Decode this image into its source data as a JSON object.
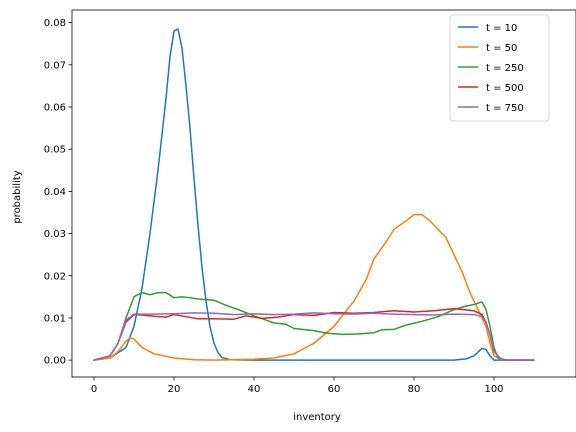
{
  "chart_data": {
    "type": "line",
    "title": "",
    "xlabel": "inventory",
    "ylabel": "probability",
    "xlim": [
      -5.5,
      115.5
    ],
    "ylim": [
      -0.004,
      0.083
    ],
    "xticks": [
      0,
      20,
      40,
      60,
      80,
      100
    ],
    "xtick_labels": [
      "0",
      "20",
      "40",
      "60",
      "80",
      "100"
    ],
    "yticks": [
      0.0,
      0.01,
      0.02,
      0.03,
      0.04,
      0.05,
      0.06,
      0.07,
      0.08
    ],
    "ytick_labels": [
      "0.00",
      "0.01",
      "0.02",
      "0.03",
      "0.04",
      "0.05",
      "0.06",
      "0.07",
      "0.08"
    ],
    "grid": false,
    "legend_position": "top-right",
    "series": [
      {
        "name": "t = 10",
        "color": "#1f77b4",
        "points": [
          [
            0,
            0.0
          ],
          [
            4,
            0.0005
          ],
          [
            8,
            0.003
          ],
          [
            10,
            0.008
          ],
          [
            12,
            0.017
          ],
          [
            14,
            0.03
          ],
          [
            16,
            0.045
          ],
          [
            18,
            0.062
          ],
          [
            19,
            0.072
          ],
          [
            20,
            0.078
          ],
          [
            21,
            0.0785
          ],
          [
            22,
            0.074
          ],
          [
            23,
            0.065
          ],
          [
            24,
            0.055
          ],
          [
            25,
            0.043
          ],
          [
            26,
            0.032
          ],
          [
            27,
            0.022
          ],
          [
            28,
            0.014
          ],
          [
            29,
            0.008
          ],
          [
            30,
            0.004
          ],
          [
            31,
            0.0018
          ],
          [
            32,
            0.0006
          ],
          [
            34,
            0.0001
          ],
          [
            40,
            0.0
          ],
          [
            60,
            0.0
          ],
          [
            80,
            0.0
          ],
          [
            90,
            0.0
          ],
          [
            93,
            0.0003
          ],
          [
            95,
            0.001
          ],
          [
            97,
            0.0028
          ],
          [
            98,
            0.0025
          ],
          [
            99,
            0.001
          ],
          [
            100,
            0.0
          ],
          [
            110,
            0.0
          ]
        ]
      },
      {
        "name": "t = 50",
        "color": "#ff7f0e",
        "points": [
          [
            0,
            0.0
          ],
          [
            4,
            0.0005
          ],
          [
            6,
            0.002
          ],
          [
            8,
            0.0045
          ],
          [
            9,
            0.0053
          ],
          [
            10,
            0.005
          ],
          [
            12,
            0.003
          ],
          [
            15,
            0.0015
          ],
          [
            20,
            0.0005
          ],
          [
            25,
            0.0001
          ],
          [
            30,
            0.0
          ],
          [
            40,
            0.0002
          ],
          [
            45,
            0.0005
          ],
          [
            50,
            0.0015
          ],
          [
            55,
            0.004
          ],
          [
            60,
            0.008
          ],
          [
            65,
            0.014
          ],
          [
            68,
            0.019
          ],
          [
            70,
            0.024
          ],
          [
            73,
            0.028
          ],
          [
            75,
            0.031
          ],
          [
            78,
            0.033
          ],
          [
            80,
            0.0345
          ],
          [
            82,
            0.0345
          ],
          [
            84,
            0.033
          ],
          [
            86,
            0.031
          ],
          [
            88,
            0.029
          ],
          [
            90,
            0.025
          ],
          [
            92,
            0.021
          ],
          [
            94,
            0.016
          ],
          [
            96,
            0.012
          ],
          [
            98,
            0.008
          ],
          [
            99,
            0.004
          ],
          [
            100,
            0.001
          ],
          [
            102,
            0.0
          ],
          [
            110,
            0.0
          ]
        ]
      },
      {
        "name": "t = 250",
        "color": "#2ca02c",
        "points": [
          [
            0,
            0.0
          ],
          [
            4,
            0.001
          ],
          [
            6,
            0.004
          ],
          [
            8,
            0.01
          ],
          [
            10,
            0.015
          ],
          [
            12,
            0.016
          ],
          [
            14,
            0.0155
          ],
          [
            16,
            0.016
          ],
          [
            18,
            0.016
          ],
          [
            20,
            0.0148
          ],
          [
            22,
            0.015
          ],
          [
            24,
            0.0148
          ],
          [
            26,
            0.0145
          ],
          [
            30,
            0.0142
          ],
          [
            33,
            0.013
          ],
          [
            36,
            0.012
          ],
          [
            40,
            0.0105
          ],
          [
            43,
            0.0095
          ],
          [
            45,
            0.0088
          ],
          [
            48,
            0.0085
          ],
          [
            50,
            0.0075
          ],
          [
            55,
            0.007
          ],
          [
            58,
            0.0064
          ],
          [
            62,
            0.0061
          ],
          [
            66,
            0.0062
          ],
          [
            70,
            0.0065
          ],
          [
            72,
            0.0072
          ],
          [
            75,
            0.0073
          ],
          [
            78,
            0.0083
          ],
          [
            82,
            0.0092
          ],
          [
            86,
            0.0103
          ],
          [
            90,
            0.012
          ],
          [
            93,
            0.0128
          ],
          [
            95,
            0.0132
          ],
          [
            97,
            0.0138
          ],
          [
            98,
            0.012
          ],
          [
            99,
            0.008
          ],
          [
            100,
            0.003
          ],
          [
            101,
            0.0005
          ],
          [
            103,
            0.0
          ],
          [
            110,
            0.0
          ]
        ]
      },
      {
        "name": "t = 500",
        "color": "#d62728",
        "points": [
          [
            0,
            0.0
          ],
          [
            4,
            0.001
          ],
          [
            6,
            0.004
          ],
          [
            8,
            0.009
          ],
          [
            10,
            0.0108
          ],
          [
            12,
            0.0107
          ],
          [
            15,
            0.0104
          ],
          [
            18,
            0.0102
          ],
          [
            20,
            0.0108
          ],
          [
            23,
            0.0103
          ],
          [
            26,
            0.0098
          ],
          [
            30,
            0.0098
          ],
          [
            35,
            0.0097
          ],
          [
            38,
            0.0105
          ],
          [
            42,
            0.0099
          ],
          [
            46,
            0.0102
          ],
          [
            50,
            0.0108
          ],
          [
            55,
            0.0106
          ],
          [
            60,
            0.0113
          ],
          [
            65,
            0.0111
          ],
          [
            70,
            0.0113
          ],
          [
            75,
            0.0117
          ],
          [
            80,
            0.0114
          ],
          [
            85,
            0.0117
          ],
          [
            90,
            0.0122
          ],
          [
            95,
            0.0117
          ],
          [
            97,
            0.0108
          ],
          [
            98,
            0.009
          ],
          [
            99,
            0.006
          ],
          [
            100,
            0.002
          ],
          [
            102,
            0.0
          ],
          [
            110,
            0.0
          ]
        ]
      },
      {
        "name": "t = 750",
        "color": "#9467bd",
        "points": [
          [
            0,
            0.0
          ],
          [
            4,
            0.001
          ],
          [
            6,
            0.004
          ],
          [
            8,
            0.0095
          ],
          [
            10,
            0.0109
          ],
          [
            15,
            0.0109
          ],
          [
            20,
            0.011
          ],
          [
            25,
            0.0112
          ],
          [
            30,
            0.0111
          ],
          [
            35,
            0.0108
          ],
          [
            40,
            0.011
          ],
          [
            45,
            0.0108
          ],
          [
            50,
            0.0109
          ],
          [
            55,
            0.0112
          ],
          [
            60,
            0.011
          ],
          [
            65,
            0.0109
          ],
          [
            70,
            0.0111
          ],
          [
            75,
            0.0109
          ],
          [
            80,
            0.0108
          ],
          [
            85,
            0.0107
          ],
          [
            90,
            0.0109
          ],
          [
            95,
            0.0108
          ],
          [
            97,
            0.0103
          ],
          [
            98,
            0.009
          ],
          [
            99,
            0.006
          ],
          [
            100,
            0.002
          ],
          [
            102,
            0.0
          ],
          [
            110,
            0.0
          ]
        ]
      }
    ]
  }
}
